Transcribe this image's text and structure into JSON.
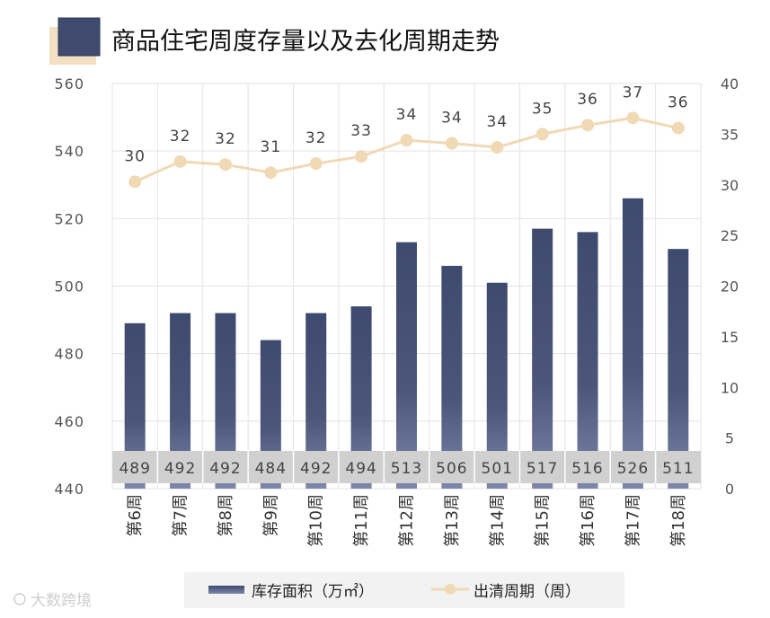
{
  "chart_data": {
    "type": "bar+line",
    "title": "商品住宅周度存量以及去化周期走势",
    "categories": [
      "第6周",
      "第7周",
      "第8周",
      "第9周",
      "第10周",
      "第11周",
      "第12周",
      "第13周",
      "第14周",
      "第15周",
      "第16周",
      "第17周",
      "第18周"
    ],
    "series": [
      {
        "name": "库存面积（万㎡）",
        "type": "bar",
        "axis": "left",
        "values": [
          489,
          492,
          492,
          484,
          492,
          494,
          513,
          506,
          501,
          517,
          516,
          526,
          511
        ],
        "labels": [
          "489",
          "492",
          "492",
          "484",
          "492",
          "494",
          "513",
          "506",
          "501",
          "517",
          "516",
          "526",
          "511"
        ]
      },
      {
        "name": "出清周期（周）",
        "type": "line",
        "axis": "right",
        "values": [
          30.3,
          32.3,
          32.0,
          31.2,
          32.1,
          32.8,
          34.4,
          34.1,
          33.7,
          35.0,
          35.9,
          36.6,
          35.6
        ],
        "labels": [
          "30",
          "32",
          "32",
          "31",
          "32",
          "33",
          "34",
          "34",
          "34",
          "35",
          "36",
          "37",
          "36"
        ]
      }
    ],
    "ylim_left": [
      440,
      560
    ],
    "yticks_left": [
      "440",
      "460",
      "480",
      "500",
      "520",
      "540",
      "560"
    ],
    "ylim_right": [
      0,
      40
    ],
    "yticks_right": [
      "0",
      "5",
      "10",
      "15",
      "20",
      "25",
      "30",
      "35",
      "40"
    ],
    "grid": true,
    "legend_position": "bottom",
    "colors": {
      "bar_top": "#3e4a6e",
      "bar_bottom": "#7d87a9",
      "line": "#f0d9b5",
      "title_accent": "#3f4a6e",
      "title_shadow": "#f3dfc3",
      "label_band": "#d0d0d0"
    }
  },
  "legend": {
    "bar_label": "库存面积（万㎡）",
    "line_label": "出清周期（周）"
  },
  "watermark": {
    "text": "大数跨境"
  }
}
